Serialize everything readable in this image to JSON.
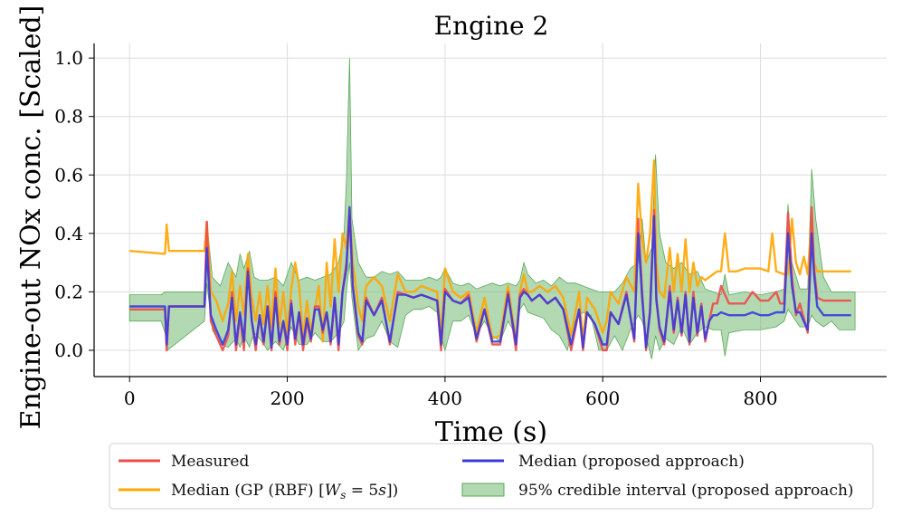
{
  "chart_data": {
    "type": "line",
    "title": "Engine 2",
    "xlabel": "Time (s)",
    "ylabel": "Engine-out NOx conc. [Scaled]",
    "xlim": [
      -45,
      960
    ],
    "ylim": [
      -0.09,
      1.05
    ],
    "xticks": [
      0,
      200,
      400,
      600,
      800
    ],
    "xtick_labels": [
      "0",
      "200",
      "400",
      "600",
      "800"
    ],
    "yticks": [
      0.0,
      0.2,
      0.4,
      0.6,
      0.8,
      1.0
    ],
    "ytick_labels": [
      "0.0",
      "0.2",
      "0.4",
      "0.6",
      "0.8",
      "1.0"
    ],
    "grid": true,
    "legend_position": "bottom-center",
    "colors": {
      "measured": "#f04a4a",
      "gp_median": "#ffa500",
      "proposed_median": "#3b3bdc",
      "interval_fill": "#7ec07e"
    },
    "band": {
      "name": "95% credible interval (proposed approach)",
      "x": [
        0,
        40,
        45,
        48,
        95,
        98,
        105,
        115,
        125,
        135,
        140,
        145,
        152,
        158,
        165,
        175,
        185,
        195,
        205,
        215,
        225,
        235,
        245,
        255,
        265,
        272,
        275,
        279,
        282,
        290,
        300,
        310,
        320,
        330,
        340,
        350,
        360,
        370,
        380,
        390,
        395,
        400,
        410,
        420,
        430,
        440,
        450,
        460,
        470,
        480,
        490,
        495,
        500,
        505,
        515,
        525,
        535,
        545,
        555,
        565,
        575,
        585,
        595,
        605,
        615,
        625,
        635,
        645,
        650,
        655,
        662,
        667,
        672,
        680,
        690,
        700,
        710,
        720,
        730,
        740,
        750,
        755,
        760,
        780,
        800,
        820,
        830,
        835,
        840,
        850,
        860,
        865,
        870,
        880,
        890,
        900,
        920
      ],
      "upper": [
        0.19,
        0.19,
        0.2,
        0.2,
        0.2,
        0.44,
        0.25,
        0.22,
        0.3,
        0.25,
        0.33,
        0.28,
        0.34,
        0.25,
        0.24,
        0.24,
        0.25,
        0.22,
        0.3,
        0.24,
        0.25,
        0.24,
        0.25,
        0.26,
        0.3,
        0.4,
        0.58,
        1.0,
        0.45,
        0.3,
        0.25,
        0.25,
        0.27,
        0.26,
        0.27,
        0.24,
        0.24,
        0.24,
        0.25,
        0.24,
        0.25,
        0.28,
        0.23,
        0.22,
        0.23,
        0.21,
        0.22,
        0.23,
        0.22,
        0.23,
        0.22,
        0.24,
        0.3,
        0.26,
        0.23,
        0.24,
        0.22,
        0.25,
        0.23,
        0.23,
        0.22,
        0.21,
        0.2,
        0.2,
        0.2,
        0.23,
        0.28,
        0.3,
        0.45,
        0.3,
        0.35,
        0.67,
        0.4,
        0.3,
        0.28,
        0.3,
        0.26,
        0.27,
        0.21,
        0.2,
        0.19,
        0.26,
        0.19,
        0.2,
        0.19,
        0.2,
        0.21,
        0.5,
        0.3,
        0.21,
        0.21,
        0.62,
        0.45,
        0.25,
        0.2,
        0.2,
        0.2
      ],
      "lower": [
        0.1,
        0.1,
        0.06,
        0.0,
        0.1,
        0.23,
        0.07,
        0.02,
        0.01,
        0.04,
        0.01,
        0.05,
        0.01,
        0.06,
        0.04,
        0.0,
        0.03,
        0.0,
        0.08,
        0.02,
        0.02,
        0.06,
        0.03,
        0.03,
        0.06,
        0.1,
        0.2,
        0.3,
        0.18,
        0.0,
        0.04,
        0.05,
        0.1,
        0.03,
        0.01,
        0.12,
        0.14,
        0.14,
        0.15,
        0.13,
        0.05,
        0.0,
        0.1,
        0.1,
        0.12,
        0.05,
        0.1,
        0.05,
        0.03,
        0.1,
        0.05,
        0.14,
        0.16,
        0.13,
        0.12,
        0.11,
        0.07,
        0.05,
        0.0,
        0.1,
        0.13,
        0.12,
        0.0,
        0.0,
        0.05,
        0.0,
        0.07,
        0.12,
        0.1,
        0.05,
        -0.03,
        0.05,
        0.0,
        0.04,
        0.02,
        0.08,
        0.02,
        0.06,
        0.08,
        0.07,
        0.07,
        -0.02,
        0.06,
        0.07,
        0.07,
        0.08,
        0.1,
        0.14,
        0.12,
        0.08,
        0.08,
        0.12,
        0.1,
        0.08,
        0.1,
        0.07,
        0.07
      ]
    },
    "series": [
      {
        "name": "Measured",
        "x": [
          0,
          45,
          47,
          50,
          95,
          98,
          103,
          110,
          118,
          125,
          130,
          135,
          140,
          145,
          150,
          155,
          160,
          165,
          170,
          175,
          180,
          185,
          190,
          195,
          200,
          205,
          210,
          215,
          220,
          225,
          230,
          235,
          240,
          245,
          250,
          255,
          260,
          265,
          270,
          275,
          279,
          283,
          290,
          295,
          300,
          310,
          320,
          330,
          340,
          350,
          360,
          370,
          380,
          390,
          395,
          400,
          410,
          420,
          430,
          440,
          450,
          460,
          470,
          480,
          490,
          495,
          500,
          505,
          510,
          520,
          530,
          540,
          550,
          560,
          570,
          575,
          580,
          590,
          600,
          605,
          610,
          620,
          630,
          640,
          645,
          650,
          655,
          660,
          665,
          668,
          672,
          678,
          685,
          690,
          695,
          700,
          705,
          710,
          715,
          720,
          725,
          730,
          735,
          740,
          745,
          750,
          760,
          770,
          780,
          790,
          800,
          810,
          820,
          825,
          830,
          835,
          840,
          845,
          850,
          860,
          865,
          868,
          872,
          880,
          890,
          900,
          915
        ],
        "y": [
          0.14,
          0.14,
          0.0,
          0.15,
          0.15,
          0.44,
          0.1,
          0.05,
          0.0,
          0.05,
          0.2,
          0.0,
          0.12,
          0.0,
          0.28,
          0.1,
          0.0,
          0.12,
          0.02,
          0.15,
          0.0,
          0.2,
          0.02,
          0.1,
          0.0,
          0.17,
          0.02,
          0.13,
          0.0,
          0.1,
          0.03,
          0.15,
          0.15,
          0.06,
          0.13,
          0.02,
          0.18,
          0.0,
          0.2,
          0.3,
          0.46,
          0.22,
          0.05,
          0.02,
          0.18,
          0.12,
          0.18,
          0.02,
          0.2,
          0.19,
          0.18,
          0.19,
          0.18,
          0.17,
          0.0,
          0.21,
          0.17,
          0.16,
          0.19,
          0.03,
          0.14,
          0.02,
          0.02,
          0.2,
          0.0,
          0.19,
          0.21,
          0.19,
          0.17,
          0.19,
          0.16,
          0.18,
          0.14,
          0.0,
          0.14,
          0.0,
          0.13,
          0.09,
          0.0,
          0.0,
          0.13,
          0.09,
          0.2,
          0.03,
          0.45,
          0.2,
          0.0,
          0.14,
          0.48,
          0.18,
          0.07,
          0.02,
          0.22,
          0.06,
          0.18,
          0.05,
          0.2,
          0.02,
          0.2,
          0.05,
          0.16,
          0.03,
          0.1,
          0.16,
          0.16,
          0.22,
          0.16,
          0.16,
          0.16,
          0.2,
          0.17,
          0.17,
          0.2,
          0.16,
          0.16,
          0.47,
          0.25,
          0.12,
          0.16,
          0.06,
          0.49,
          0.28,
          0.18,
          0.17,
          0.17,
          0.17,
          0.17
        ]
      },
      {
        "name": "Median (GP (RBF) [W_s = 5s])",
        "x": [
          0,
          45,
          47,
          50,
          95,
          98,
          103,
          110,
          118,
          125,
          130,
          135,
          140,
          145,
          150,
          155,
          160,
          165,
          170,
          175,
          180,
          185,
          190,
          195,
          200,
          205,
          210,
          215,
          220,
          225,
          230,
          235,
          240,
          245,
          250,
          255,
          260,
          265,
          270,
          275,
          279,
          283,
          290,
          295,
          300,
          310,
          320,
          330,
          340,
          350,
          360,
          370,
          380,
          390,
          395,
          400,
          410,
          420,
          430,
          440,
          450,
          460,
          470,
          480,
          490,
          495,
          500,
          505,
          510,
          520,
          530,
          540,
          550,
          560,
          570,
          575,
          580,
          590,
          600,
          605,
          610,
          620,
          630,
          640,
          645,
          650,
          655,
          660,
          665,
          668,
          672,
          678,
          685,
          690,
          695,
          700,
          705,
          710,
          715,
          720,
          725,
          730,
          735,
          740,
          745,
          750,
          755,
          760,
          770,
          780,
          790,
          800,
          810,
          815,
          820,
          830,
          835,
          840,
          845,
          850,
          855,
          860,
          865,
          868,
          872,
          880,
          890,
          900,
          915
        ],
        "y": [
          0.34,
          0.33,
          0.43,
          0.34,
          0.34,
          0.44,
          0.2,
          0.17,
          0.1,
          0.16,
          0.27,
          0.1,
          0.22,
          0.12,
          0.33,
          0.18,
          0.1,
          0.2,
          0.09,
          0.22,
          0.08,
          0.28,
          0.08,
          0.2,
          0.06,
          0.21,
          0.3,
          0.22,
          0.04,
          0.17,
          0.06,
          0.14,
          0.22,
          0.03,
          0.3,
          0.15,
          0.38,
          0.2,
          0.4,
          0.35,
          0.48,
          0.3,
          0.15,
          0.1,
          0.22,
          0.25,
          0.22,
          0.1,
          0.26,
          0.2,
          0.2,
          0.22,
          0.21,
          0.2,
          0.05,
          0.28,
          0.2,
          0.18,
          0.2,
          0.06,
          0.18,
          0.04,
          0.05,
          0.22,
          0.03,
          0.2,
          0.26,
          0.2,
          0.2,
          0.22,
          0.2,
          0.22,
          0.18,
          0.05,
          0.2,
          0.03,
          0.18,
          0.14,
          0.06,
          0.1,
          0.2,
          0.16,
          0.25,
          0.2,
          0.57,
          0.38,
          0.3,
          0.4,
          0.65,
          0.3,
          0.2,
          0.18,
          0.35,
          0.2,
          0.33,
          0.2,
          0.38,
          0.2,
          0.3,
          0.22,
          0.25,
          0.24,
          0.25,
          0.26,
          0.27,
          0.27,
          0.4,
          0.27,
          0.27,
          0.28,
          0.28,
          0.28,
          0.27,
          0.4,
          0.27,
          0.26,
          0.26,
          0.45,
          0.3,
          0.26,
          0.32,
          0.26,
          0.45,
          0.3,
          0.27,
          0.27,
          0.27,
          0.27,
          0.27
        ]
      },
      {
        "name": "Median (proposed approach)",
        "x": [
          0,
          45,
          47,
          50,
          95,
          98,
          103,
          110,
          118,
          125,
          130,
          135,
          140,
          145,
          150,
          155,
          160,
          165,
          170,
          175,
          180,
          185,
          190,
          195,
          200,
          205,
          210,
          215,
          220,
          225,
          230,
          235,
          240,
          245,
          250,
          255,
          260,
          265,
          270,
          275,
          279,
          283,
          290,
          295,
          300,
          310,
          320,
          330,
          340,
          350,
          360,
          370,
          380,
          390,
          395,
          400,
          410,
          420,
          430,
          440,
          450,
          460,
          470,
          480,
          490,
          495,
          500,
          505,
          510,
          520,
          530,
          540,
          550,
          560,
          570,
          575,
          580,
          590,
          600,
          605,
          610,
          620,
          630,
          640,
          645,
          650,
          655,
          660,
          665,
          668,
          672,
          678,
          685,
          690,
          695,
          700,
          705,
          710,
          715,
          720,
          725,
          730,
          735,
          740,
          745,
          750,
          760,
          770,
          780,
          790,
          800,
          810,
          820,
          825,
          830,
          835,
          840,
          845,
          850,
          860,
          865,
          868,
          872,
          880,
          890,
          900,
          915
        ],
        "y": [
          0.15,
          0.15,
          0.02,
          0.15,
          0.15,
          0.35,
          0.12,
          0.07,
          0.02,
          0.07,
          0.18,
          0.02,
          0.13,
          0.03,
          0.27,
          0.1,
          0.02,
          0.12,
          0.03,
          0.15,
          0.01,
          0.18,
          0.03,
          0.1,
          0.02,
          0.16,
          0.04,
          0.13,
          0.02,
          0.11,
          0.04,
          0.14,
          0.14,
          0.07,
          0.13,
          0.03,
          0.18,
          0.02,
          0.2,
          0.28,
          0.49,
          0.22,
          0.06,
          0.03,
          0.17,
          0.12,
          0.17,
          0.03,
          0.19,
          0.19,
          0.18,
          0.19,
          0.18,
          0.17,
          0.02,
          0.2,
          0.17,
          0.16,
          0.18,
          0.04,
          0.14,
          0.03,
          0.03,
          0.19,
          0.02,
          0.18,
          0.2,
          0.19,
          0.17,
          0.19,
          0.16,
          0.18,
          0.14,
          0.02,
          0.14,
          0.01,
          0.13,
          0.09,
          0.02,
          0.02,
          0.13,
          0.09,
          0.19,
          0.04,
          0.4,
          0.18,
          0.01,
          0.13,
          0.46,
          0.17,
          0.08,
          0.03,
          0.2,
          0.07,
          0.17,
          0.06,
          0.19,
          0.03,
          0.18,
          0.06,
          0.15,
          0.04,
          0.1,
          0.12,
          0.12,
          0.13,
          0.12,
          0.12,
          0.12,
          0.13,
          0.12,
          0.12,
          0.13,
          0.13,
          0.13,
          0.4,
          0.22,
          0.13,
          0.13,
          0.07,
          0.4,
          0.26,
          0.15,
          0.12,
          0.12,
          0.12,
          0.12
        ]
      }
    ],
    "legend": {
      "measured": "Measured",
      "gp_median": "Median (GP (RBF) [",
      "gp_median_math": "W",
      "gp_median_sub": "s",
      "gp_median_eq": " = 5",
      "gp_median_unit": "s",
      "gp_median_tail": "])",
      "proposed_median": "Median (proposed approach)",
      "interval": "95% credible interval (proposed approach)"
    }
  }
}
